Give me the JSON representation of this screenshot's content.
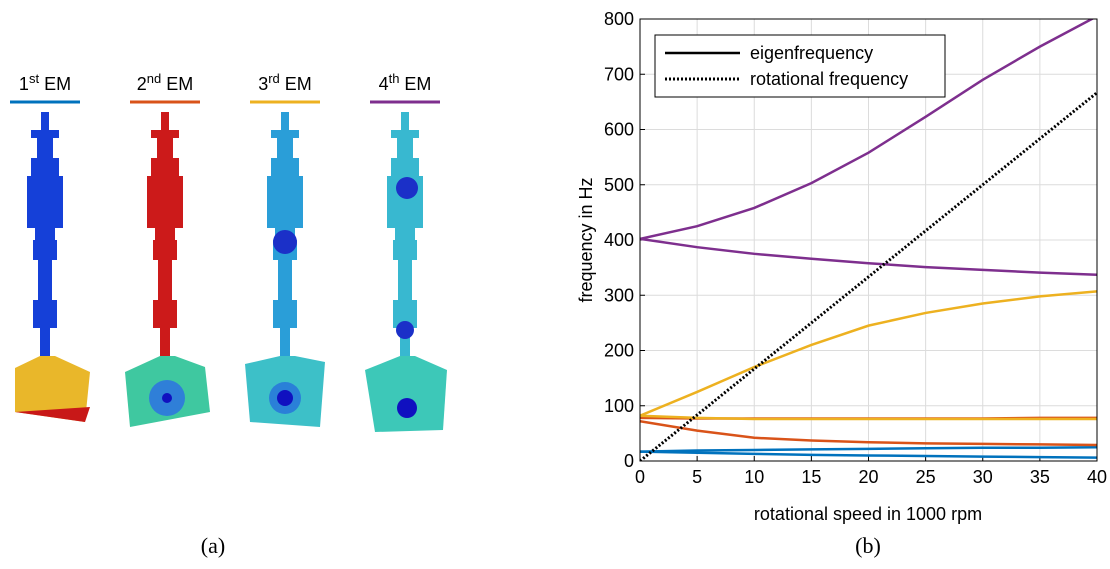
{
  "modes": [
    {
      "number": "1",
      "suffix": "st",
      "label": "EM",
      "color": "#0072bd"
    },
    {
      "number": "2",
      "suffix": "nd",
      "label": "EM",
      "color": "#d95319"
    },
    {
      "number": "3",
      "suffix": "rd",
      "label": "EM",
      "color": "#edb120"
    },
    {
      "number": "4",
      "suffix": "th",
      "label": "EM",
      "color": "#7e2f8e"
    }
  ],
  "captions": [
    "(a)",
    "(b)"
  ],
  "chart_data": {
    "type": "line",
    "xlabel": "rotational speed in 1000 rpm",
    "ylabel": "frequency in Hz",
    "x": [
      0,
      5,
      10,
      15,
      20,
      25,
      30,
      35,
      40
    ],
    "xlim": [
      0,
      40
    ],
    "xticks": [
      0,
      5,
      10,
      15,
      20,
      25,
      30,
      35,
      40
    ],
    "ylim": [
      0,
      800
    ],
    "yticks": [
      0,
      100,
      200,
      300,
      400,
      500,
      600,
      700,
      800
    ],
    "grid": true,
    "legend_position": "upper left",
    "legend": [
      {
        "label": "eigenfrequency",
        "style": "solid"
      },
      {
        "label": "rotational frequency",
        "style": "dotted"
      }
    ],
    "series": [
      {
        "color": "#0072bd",
        "style": "solid",
        "values": [
          17,
          15,
          13,
          11,
          10,
          9,
          8,
          7,
          6
        ]
      },
      {
        "color": "#0072bd",
        "style": "solid",
        "values": [
          17,
          19,
          20,
          21,
          22,
          23,
          24,
          24,
          25
        ]
      },
      {
        "color": "#d95319",
        "style": "solid",
        "values": [
          72,
          55,
          42,
          37,
          34,
          32,
          31,
          30,
          29
        ]
      },
      {
        "color": "#d95319",
        "style": "solid",
        "values": [
          78,
          77,
          77,
          77,
          77,
          77,
          77,
          78,
          78
        ]
      },
      {
        "color": "#edb120",
        "style": "solid",
        "values": [
          82,
          78,
          76,
          76,
          76,
          76,
          76,
          76,
          76
        ]
      },
      {
        "color": "#edb120",
        "style": "solid",
        "values": [
          82,
          125,
          170,
          210,
          245,
          268,
          285,
          298,
          307
        ]
      },
      {
        "color": "#7e2f8e",
        "style": "solid",
        "values": [
          402,
          387,
          375,
          366,
          358,
          351,
          346,
          341,
          337
        ]
      },
      {
        "color": "#7e2f8e",
        "style": "solid",
        "values": [
          402,
          425,
          458,
          503,
          558,
          623,
          690,
          750,
          805
        ]
      },
      {
        "color": "#000000",
        "style": "dotted",
        "values": [
          0,
          83.3,
          166.7,
          250,
          333.3,
          416.7,
          500,
          583.3,
          666.7
        ]
      }
    ]
  }
}
